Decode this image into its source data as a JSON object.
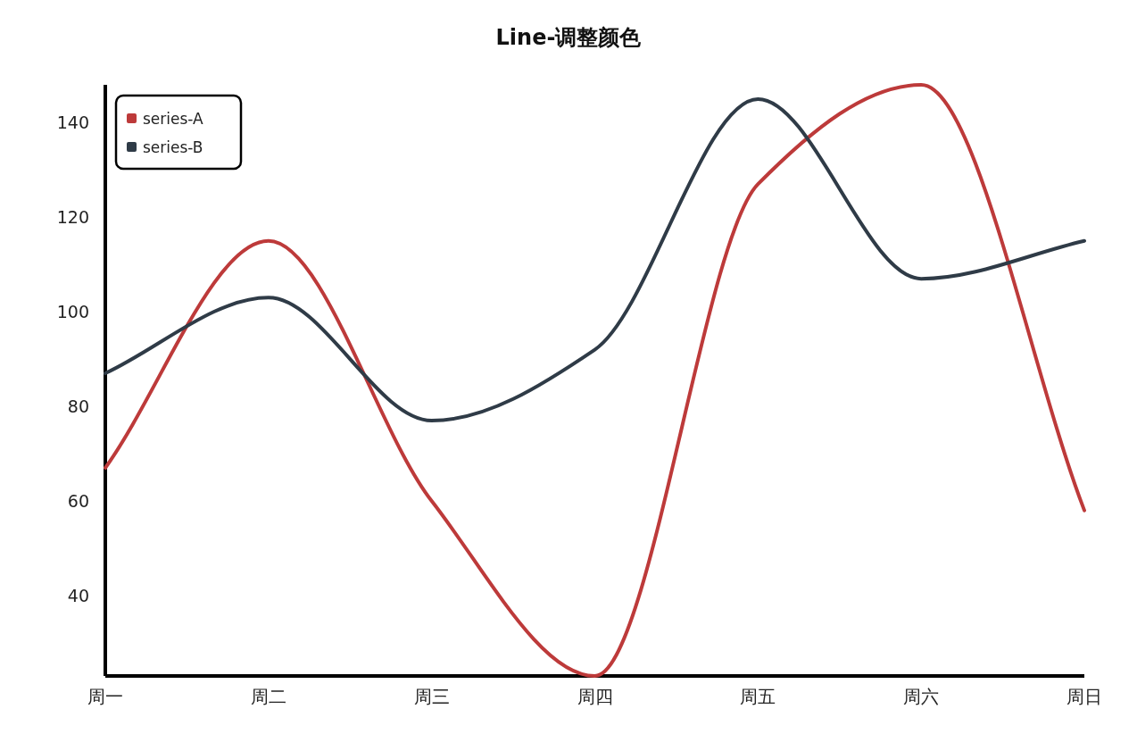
{
  "chart_data": {
    "type": "line",
    "title": "Line-调整颜色",
    "categories": [
      "周一",
      "周二",
      "周三",
      "周四",
      "周五",
      "周六",
      "周日"
    ],
    "series": [
      {
        "name": "series-A",
        "color": "#bd3a3a",
        "values": [
          67,
          115,
          60,
          23,
          127,
          148,
          58
        ]
      },
      {
        "name": "series-B",
        "color": "#2f3b47",
        "values": [
          87,
          103,
          77,
          92,
          145,
          107,
          115
        ]
      }
    ],
    "ylim": [
      23,
      148
    ],
    "yticks": [
      40,
      60,
      80,
      100,
      120,
      140
    ],
    "grid": false,
    "legend": "top left"
  }
}
